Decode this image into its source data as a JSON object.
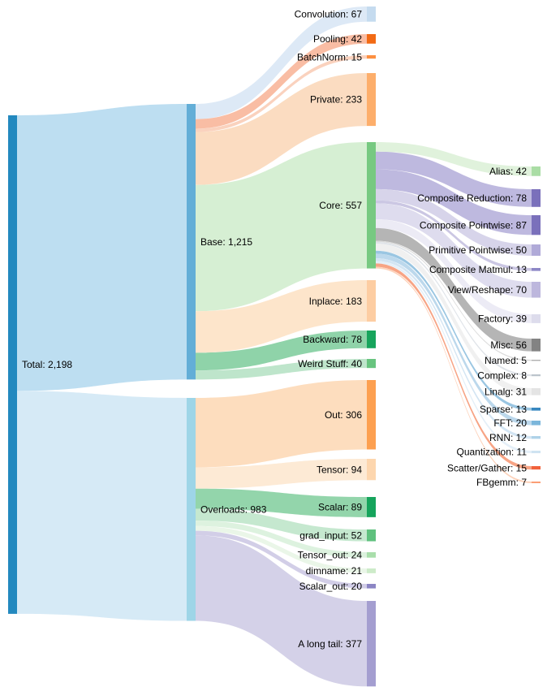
{
  "chart_data": {
    "type": "sankey",
    "title": "",
    "unit_total": 2198,
    "columns": 4,
    "nodes": [
      {
        "id": "total",
        "name": "Total",
        "value": 2198,
        "label": "Total: 2,198",
        "color": "#2389BF"
      },
      {
        "id": "base",
        "name": "Base",
        "value": 1215,
        "label": "Base: 1,215",
        "color": "#63AED7"
      },
      {
        "id": "overloads",
        "name": "Overloads",
        "value": 983,
        "label": "Overloads: 983",
        "color": "#9ED5E7"
      },
      {
        "id": "convolution",
        "name": "Convolution",
        "value": 67,
        "label": "Convolution: 67",
        "color": "#C5DBEF"
      },
      {
        "id": "pooling",
        "name": "Pooling",
        "value": 42,
        "label": "Pooling: 42",
        "color": "#F26A14"
      },
      {
        "id": "batchnorm",
        "name": "BatchNorm",
        "value": 15,
        "label": "BatchNorm: 15",
        "color": "#FD8F40"
      },
      {
        "id": "private",
        "name": "Private",
        "value": 233,
        "label": "Private: 233",
        "color": "#FDAE6B"
      },
      {
        "id": "core",
        "name": "Core",
        "value": 557,
        "label": "Core: 557",
        "color": "#77C981"
      },
      {
        "id": "inplace",
        "name": "Inplace",
        "value": 183,
        "label": "Inplace: 183",
        "color": "#FDCDA2"
      },
      {
        "id": "backward",
        "name": "Backward",
        "value": 78,
        "label": "Backward: 78",
        "color": "#17A45C"
      },
      {
        "id": "weird_stuff",
        "name": "Weird Stuff",
        "value": 40,
        "label": "Weird Stuff: 40",
        "color": "#68C47F"
      },
      {
        "id": "out",
        "name": "Out",
        "value": 306,
        "label": "Out: 306",
        "color": "#FDA050"
      },
      {
        "id": "tensor",
        "name": "Tensor",
        "value": 94,
        "label": "Tensor: 94",
        "color": "#FDD6AE"
      },
      {
        "id": "scalar",
        "name": "Scalar",
        "value": 89,
        "label": "Scalar: 89",
        "color": "#16A45C"
      },
      {
        "id": "grad_input",
        "name": "grad_input",
        "value": 52,
        "label": "grad_input: 52",
        "color": "#5FC17E"
      },
      {
        "id": "tensor_out",
        "name": "Tensor_out",
        "value": 24,
        "label": "Tensor_out: 24",
        "color": "#A9DEAB"
      },
      {
        "id": "dimname",
        "name": "dimname",
        "value": 21,
        "label": "dimname: 21",
        "color": "#CDEBC9"
      },
      {
        "id": "scalar_out",
        "name": "Scalar_out",
        "value": 20,
        "label": "Scalar_out: 20",
        "color": "#8B85C4"
      },
      {
        "id": "a_long_tail",
        "name": "A long tail",
        "value": 377,
        "label": "A long tail: 377",
        "color": "#A49ED0"
      },
      {
        "id": "alias",
        "name": "Alias",
        "value": 42,
        "label": "Alias: 42",
        "color": "#AADDA5"
      },
      {
        "id": "composite_reduction",
        "name": "Composite Reduction",
        "value": 78,
        "label": "Composite Reduction: 78",
        "color": "#7A70BB"
      },
      {
        "id": "composite_pointwise",
        "name": "Composite Pointwise",
        "value": 87,
        "label": "Composite Pointwise: 87",
        "color": "#7A70BB"
      },
      {
        "id": "primitive_pointwise",
        "name": "Primitive Pointwise",
        "value": 50,
        "label": "Primitive Pointwise: 50",
        "color": "#B0AAD8"
      },
      {
        "id": "composite_matmul",
        "name": "Composite Matmul",
        "value": 13,
        "label": "Composite Matmul: 13",
        "color": "#8D87C6"
      },
      {
        "id": "view_reshape",
        "name": "View/Reshape",
        "value": 70,
        "label": "View/Reshape: 70",
        "color": "#BDB7DD"
      },
      {
        "id": "factory",
        "name": "Factory",
        "value": 39,
        "label": "Factory: 39",
        "color": "#DDDCEC"
      },
      {
        "id": "misc",
        "name": "Misc",
        "value": 56,
        "label": "Misc: 56",
        "color": "#838383"
      },
      {
        "id": "named",
        "name": "Named",
        "value": 5,
        "label": "Named: 5",
        "color": "#AFAFAF"
      },
      {
        "id": "complex",
        "name": "Complex",
        "value": 8,
        "label": "Complex: 8",
        "color": "#BCC4CC"
      },
      {
        "id": "linalg",
        "name": "Linalg",
        "value": 31,
        "label": "Linalg: 31",
        "color": "#E4E4E4"
      },
      {
        "id": "sparse",
        "name": "Sparse",
        "value": 13,
        "label": "Sparse: 13",
        "color": "#3787C0"
      },
      {
        "id": "fft",
        "name": "FFT",
        "value": 20,
        "label": "FFT: 20",
        "color": "#7BB6DB"
      },
      {
        "id": "rnn",
        "name": "RNN",
        "value": 12,
        "label": "RNN: 12",
        "color": "#AFD2E8"
      },
      {
        "id": "quantization",
        "name": "Quantization",
        "value": 11,
        "label": "Quantization: 11",
        "color": "#CFE3F1"
      },
      {
        "id": "scatter_gather",
        "name": "Scatter/Gather",
        "value": 15,
        "label": "Scatter/Gather: 15",
        "color": "#F1613B"
      },
      {
        "id": "fbgemm",
        "name": "FBgemm",
        "value": 7,
        "label": "FBgemm: 7",
        "color": "#FB9B72"
      }
    ],
    "links": [
      {
        "source": "total",
        "target": "base",
        "value": 1215,
        "color": "#BDDEF1"
      },
      {
        "source": "total",
        "target": "overloads",
        "value": 983,
        "color": "#D6EAF6"
      },
      {
        "source": "base",
        "target": "convolution",
        "value": 67,
        "color": "#DDE9F6"
      },
      {
        "source": "base",
        "target": "pooling",
        "value": 42,
        "color": "#F9BDA4"
      },
      {
        "source": "base",
        "target": "batchnorm",
        "value": 15,
        "color": "#FAD2BE"
      },
      {
        "source": "base",
        "target": "private",
        "value": 233,
        "color": "#FBDCC1"
      },
      {
        "source": "base",
        "target": "core",
        "value": 557,
        "color": "#D6EFD3"
      },
      {
        "source": "base",
        "target": "inplace",
        "value": 183,
        "color": "#FDE5CB"
      },
      {
        "source": "base",
        "target": "backward",
        "value": 78,
        "color": "#8FD3A9"
      },
      {
        "source": "base",
        "target": "weird_stuff",
        "value": 40,
        "color": "#BEE5CB"
      },
      {
        "source": "overloads",
        "target": "out",
        "value": 306,
        "color": "#FDDDBE"
      },
      {
        "source": "overloads",
        "target": "tensor",
        "value": 94,
        "color": "#FDEAD5"
      },
      {
        "source": "overloads",
        "target": "scalar",
        "value": 89,
        "color": "#93D5AB"
      },
      {
        "source": "overloads",
        "target": "grad_input",
        "value": 52,
        "color": "#C5E8CF"
      },
      {
        "source": "overloads",
        "target": "tensor_out",
        "value": 24,
        "color": "#DDF2DF"
      },
      {
        "source": "overloads",
        "target": "dimname",
        "value": 21,
        "color": "#EAF6E8"
      },
      {
        "source": "overloads",
        "target": "scalar_out",
        "value": 20,
        "color": "#D2CEE7"
      },
      {
        "source": "overloads",
        "target": "a_long_tail",
        "value": 377,
        "color": "#D4D1E8"
      },
      {
        "source": "core",
        "target": "alias",
        "value": 42,
        "color": "#E0F2DC"
      },
      {
        "source": "core",
        "target": "composite_reduction",
        "value": 78,
        "color": "#BEB9DF"
      },
      {
        "source": "core",
        "target": "composite_pointwise",
        "value": 87,
        "color": "#BEB9DF"
      },
      {
        "source": "core",
        "target": "primitive_pointwise",
        "value": 50,
        "color": "#D7D4EA"
      },
      {
        "source": "core",
        "target": "composite_matmul",
        "value": 13,
        "color": "#CBC7E3"
      },
      {
        "source": "core",
        "target": "view_reshape",
        "value": 70,
        "color": "#DEDCEE"
      },
      {
        "source": "core",
        "target": "factory",
        "value": 39,
        "color": "#ECEBF5"
      },
      {
        "source": "core",
        "target": "misc",
        "value": 56,
        "color": "#B5B5B5"
      },
      {
        "source": "core",
        "target": "named",
        "value": 5,
        "color": "#DADADA"
      },
      {
        "source": "core",
        "target": "complex",
        "value": 8,
        "color": "#E0E4E9"
      },
      {
        "source": "core",
        "target": "linalg",
        "value": 31,
        "color": "#F0F0F0"
      },
      {
        "source": "core",
        "target": "sparse",
        "value": 13,
        "color": "#9AC6E2"
      },
      {
        "source": "core",
        "target": "fft",
        "value": 20,
        "color": "#BCD8EC"
      },
      {
        "source": "core",
        "target": "rnn",
        "value": 12,
        "color": "#D3E5F3"
      },
      {
        "source": "core",
        "target": "quantization",
        "value": 11,
        "color": "#E4EFF8"
      },
      {
        "source": "core",
        "target": "scatter_gather",
        "value": 15,
        "color": "#F7A485"
      },
      {
        "source": "core",
        "target": "fbgemm",
        "value": 7,
        "color": "#FDD2BA"
      }
    ]
  }
}
